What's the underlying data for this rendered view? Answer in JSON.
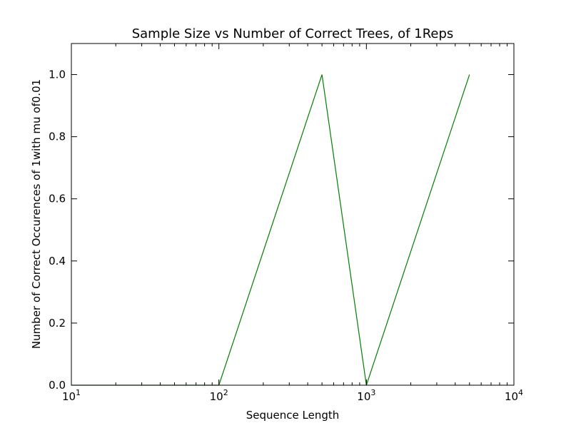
{
  "chart_data": {
    "type": "line",
    "title": "Sample Size vs Number of Correct Trees, of 1Reps",
    "xlabel": "Sequence Length",
    "ylabel": "Number of Correct Occurences of 1with mu of0.01",
    "xscale": "log",
    "xlim": [
      10,
      10000
    ],
    "ylim": [
      0,
      1.1
    ],
    "grid": false,
    "x_ticks": [
      {
        "value": 10,
        "base": "10",
        "exp": "1"
      },
      {
        "value": 100,
        "base": "10",
        "exp": "2"
      },
      {
        "value": 1000,
        "base": "10",
        "exp": "3"
      },
      {
        "value": 10000,
        "base": "10",
        "exp": "4"
      }
    ],
    "y_ticks": [
      {
        "value": 0,
        "label": "0.0"
      },
      {
        "value": 0.2,
        "label": "0.2"
      },
      {
        "value": 0.4,
        "label": "0.4"
      },
      {
        "value": 0.6,
        "label": "0.6"
      },
      {
        "value": 0.8,
        "label": "0.8"
      },
      {
        "value": 1.0,
        "label": "1.0"
      }
    ],
    "series": [
      {
        "color": "#008000",
        "x": [
          10,
          50,
          100,
          500,
          1000,
          5000
        ],
        "y": [
          0,
          0,
          0,
          1,
          0,
          1
        ]
      }
    ]
  }
}
